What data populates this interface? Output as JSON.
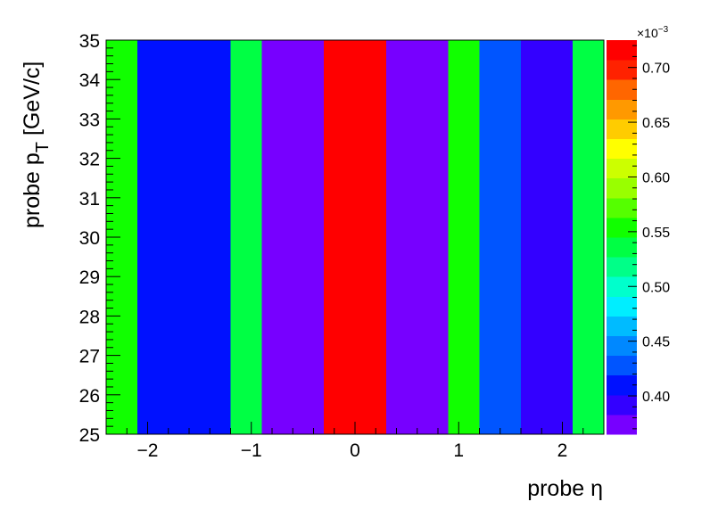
{
  "chart_data": {
    "type": "heatmap",
    "title": "",
    "xlabel": "probe η",
    "ylabel_main": "probe p",
    "ylabel_sub": "T",
    "ylabel_unit": "[GeV/c]",
    "xlim": [
      -2.4,
      2.4
    ],
    "ylim": [
      25,
      35
    ],
    "xticks": [
      -2,
      -1,
      0,
      1,
      2
    ],
    "xtick_labels": [
      "−2",
      "−1",
      "0",
      "1",
      "2"
    ],
    "yticks": [
      25,
      26,
      27,
      28,
      29,
      30,
      31,
      32,
      33,
      34,
      35
    ],
    "ytick_labels": [
      "25",
      "26",
      "27",
      "28",
      "29",
      "30",
      "31",
      "32",
      "33",
      "34",
      "35"
    ],
    "x_bin_edges": [
      -2.4,
      -2.1,
      -1.2,
      -0.9,
      -0.3,
      0.3,
      0.9,
      1.2,
      1.6,
      2.1,
      2.4
    ],
    "y_bin_edges": [
      25,
      35
    ],
    "values": [
      [
        0.000555,
        0.000405,
        0.000535,
        0.000375,
        0.000725,
        0.000375,
        0.000555,
        0.000435,
        0.000385,
        0.000535
      ]
    ],
    "colorbar": {
      "min": 0.000365,
      "max": 0.000725,
      "exponent_label": "×10",
      "exponent": "−3",
      "ticks": [
        0.0004,
        0.00045,
        0.0005,
        0.00055,
        0.0006,
        0.00065,
        0.0007
      ],
      "tick_labels": [
        "0.40",
        "0.45",
        "0.50",
        "0.55",
        "0.60",
        "0.65",
        "0.70"
      ],
      "colors": [
        "#7700ff",
        "#3300ff",
        "#0011ff",
        "#0055ff",
        "#0088ff",
        "#00bbff",
        "#00eeff",
        "#00ffcc",
        "#00ff88",
        "#00ff44",
        "#11ff00",
        "#55ff00",
        "#99ff00",
        "#ccff00",
        "#ffff00",
        "#ffcc00",
        "#ff9900",
        "#ff6600",
        "#ff2200",
        "#ff0000"
      ]
    },
    "grid": false
  }
}
